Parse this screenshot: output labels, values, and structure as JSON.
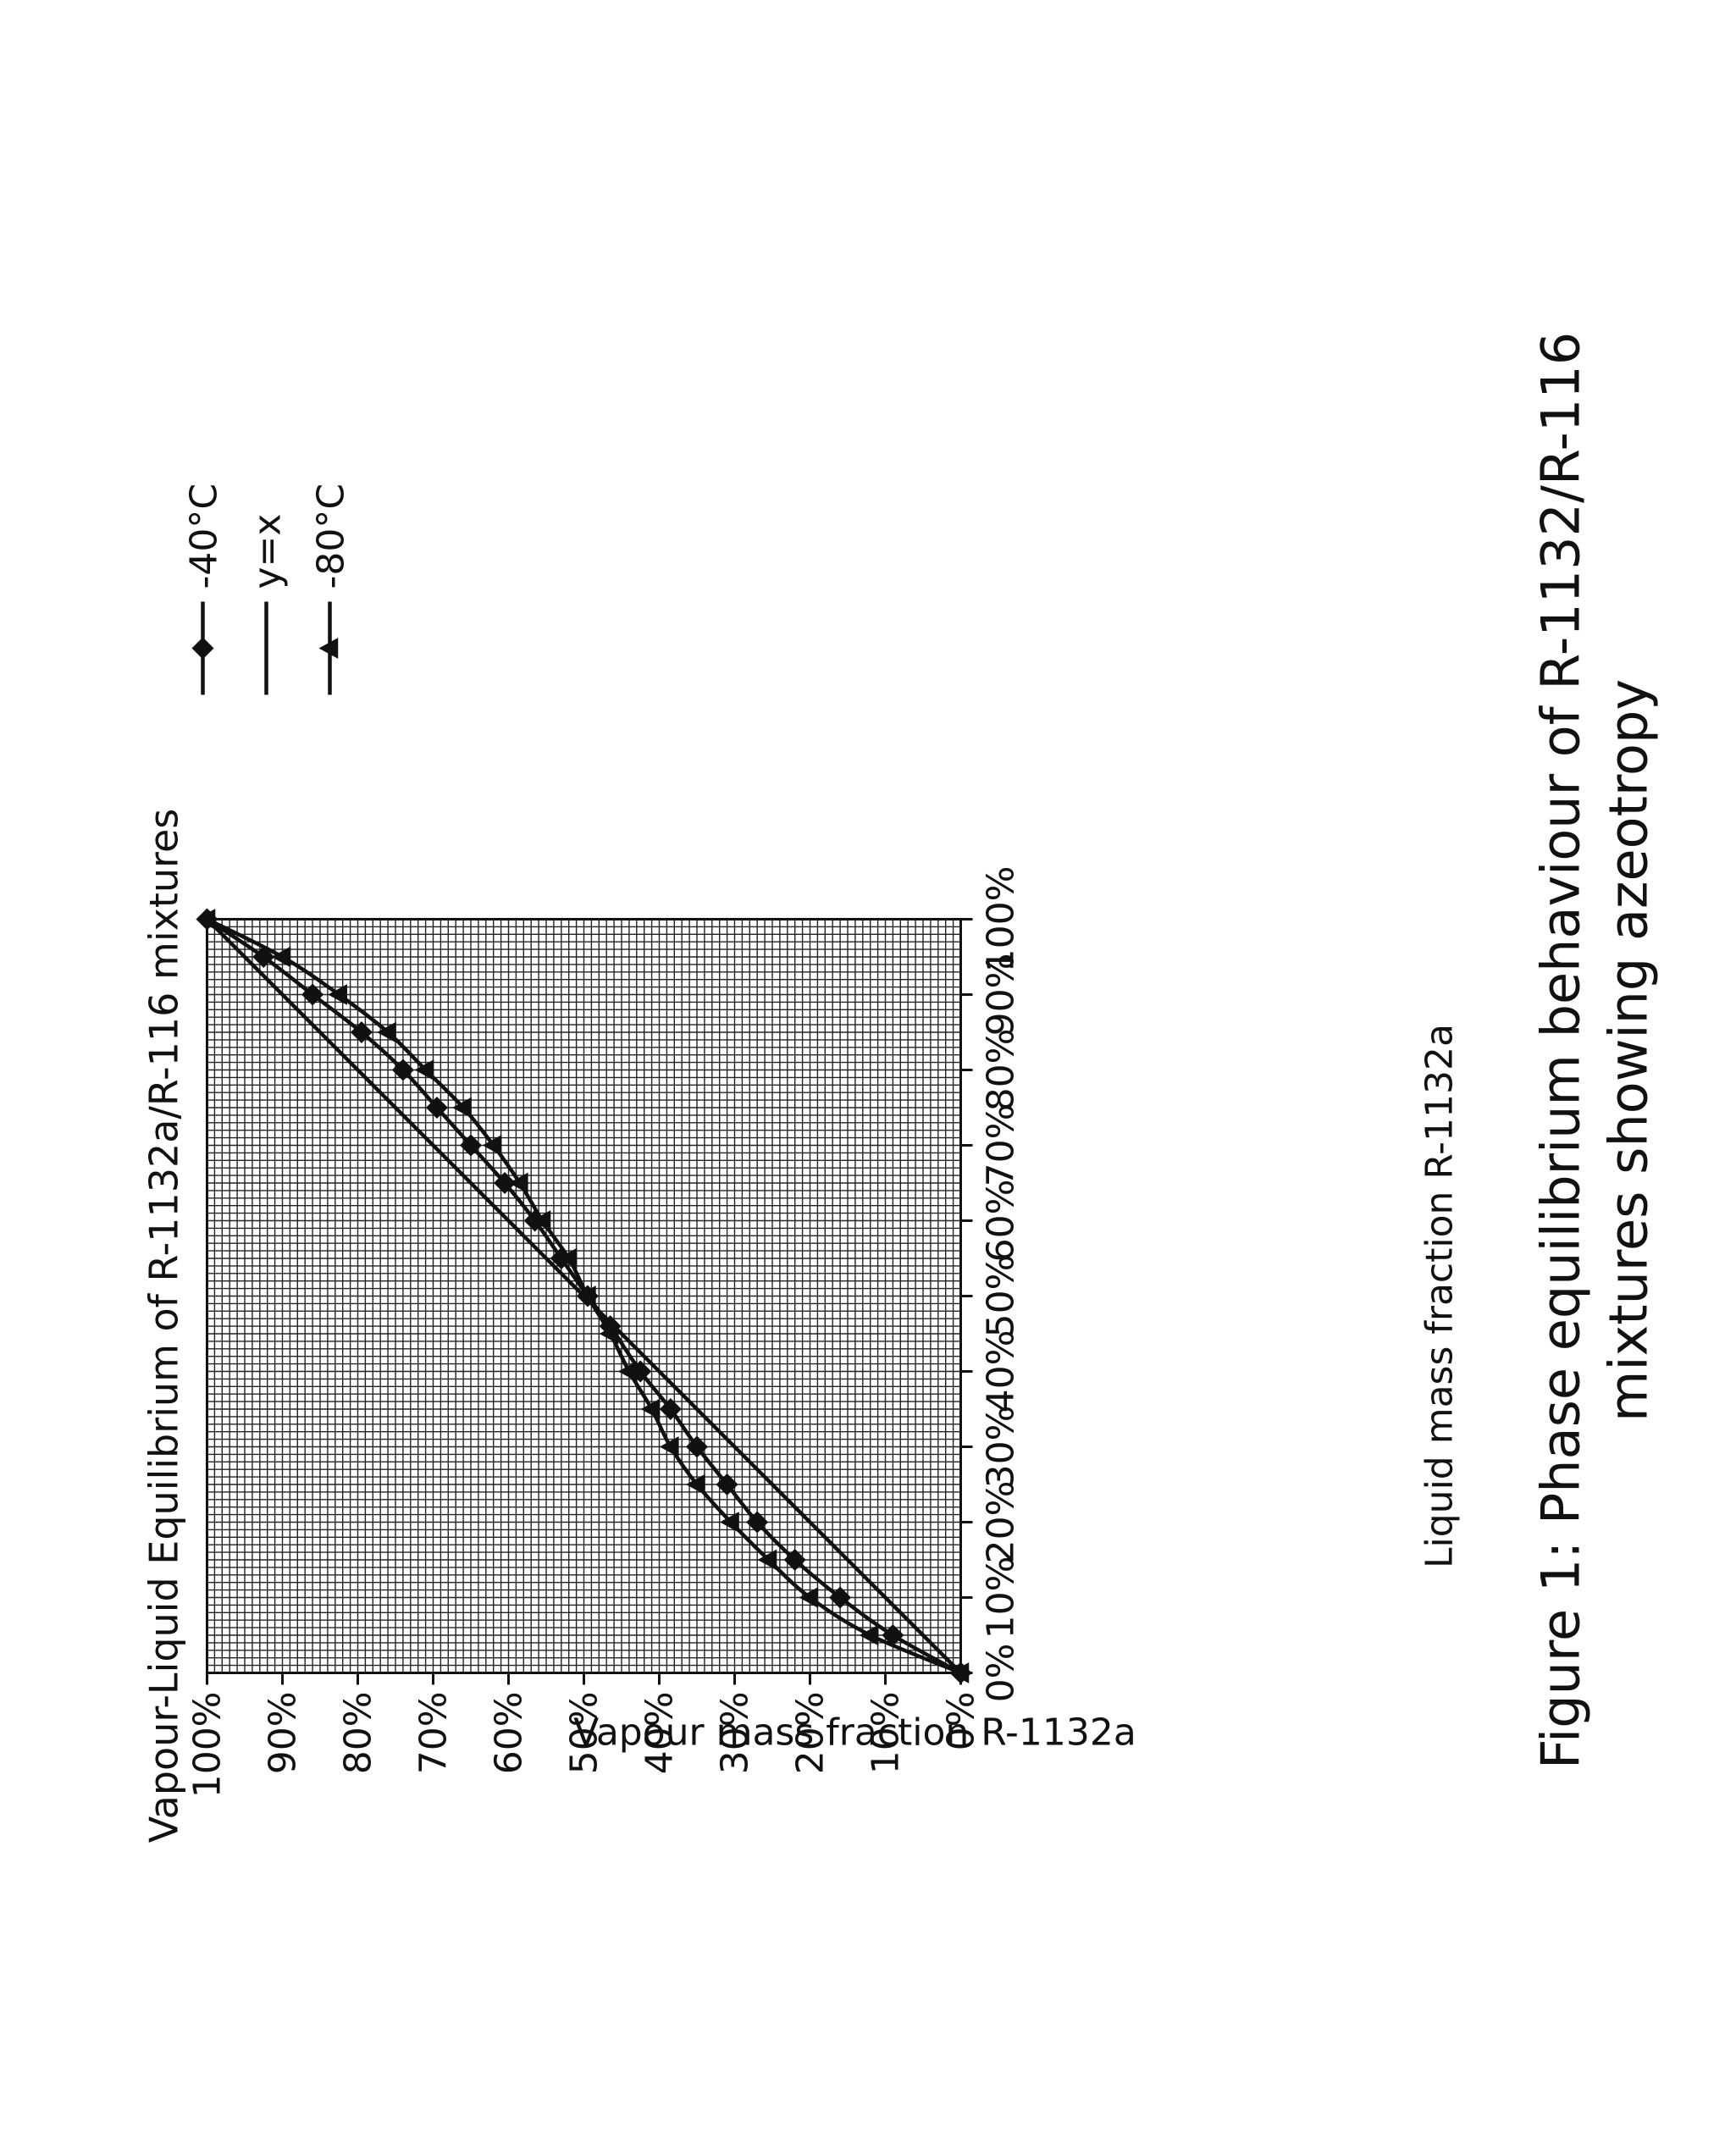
{
  "caption": {
    "line1": "Figure 1: Phase equilibrium behaviour of R-1132/R-116",
    "line2": "mixtures showing azeotropy"
  },
  "chart_data": {
    "type": "line",
    "title": "Vapour-Liquid Equilibrium of R-1132a/R-116 mixtures",
    "xlabel": "Liquid mass fraction R-1132a",
    "ylabel": "Vapour mass fraction R-1132a",
    "xlim": [
      0,
      100
    ],
    "ylim": [
      0,
      100
    ],
    "x_ticks": [
      "0%",
      "10%",
      "20%",
      "30%",
      "40%",
      "50%",
      "60%",
      "70%",
      "80%",
      "90%",
      "100%"
    ],
    "y_ticks": [
      "0%",
      "10%",
      "20%",
      "30%",
      "40%",
      "50%",
      "60%",
      "70%",
      "80%",
      "90%",
      "100%"
    ],
    "grid": true,
    "legend_position": "top-right",
    "orientation": "rotated 90 degrees counter-clockwise on page",
    "series": [
      {
        "name": "-40°C",
        "marker": "diamond",
        "x": [
          0,
          5,
          10,
          15,
          20,
          25,
          30,
          35,
          40,
          46,
          50,
          55,
          60,
          65,
          70,
          75,
          80,
          85,
          90,
          95,
          100
        ],
        "y": [
          0,
          9,
          16,
          22,
          27,
          31,
          35,
          38.5,
          42.5,
          46.5,
          49.5,
          53,
          56.5,
          60.5,
          65,
          69.5,
          74,
          79.5,
          86,
          92.5,
          100
        ]
      },
      {
        "name": "y=x",
        "marker": "none",
        "x": [
          0,
          100
        ],
        "y": [
          0,
          100
        ]
      },
      {
        "name": "-80°C",
        "marker": "triangle",
        "x": [
          0,
          5,
          10,
          15,
          20,
          25,
          30,
          35,
          40,
          45,
          50,
          55,
          60,
          65,
          70,
          75,
          80,
          85,
          90,
          95,
          100
        ],
        "y": [
          0,
          12,
          20,
          25.5,
          30.5,
          35,
          38.5,
          41,
          44,
          46.5,
          49.5,
          52,
          55.5,
          58.5,
          62,
          66,
          71,
          76,
          82.5,
          90,
          100
        ]
      }
    ]
  },
  "colors": {
    "ink": "#111111",
    "background": "#ffffff"
  }
}
